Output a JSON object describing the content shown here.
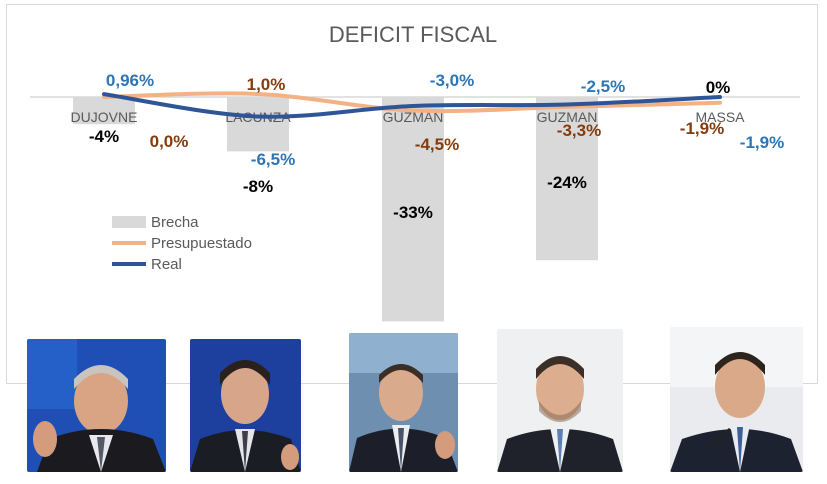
{
  "chart_data": {
    "type": "bar",
    "title": "DEFICIT FISCAL",
    "categories": [
      "DUJOVNE",
      "LACUNZA",
      "GUZMAN",
      "GUZMAN",
      "MASSA"
    ],
    "series": [
      {
        "name": "Brecha",
        "kind": "bar",
        "color": "#d9d9d9",
        "values": [
          -4,
          -8,
          -33,
          -24,
          0
        ],
        "labels": [
          "-4%",
          "-8%",
          "-33%",
          "-24%",
          ""
        ]
      },
      {
        "name": "Presupuestado",
        "kind": "line",
        "color": "#f4b183",
        "values": [
          0.0,
          1.0,
          -4.5,
          -3.3,
          -1.9
        ],
        "labels": [
          "0,0%",
          "1,0%",
          "-4,5%",
          "-3,3%",
          "-1,9%"
        ]
      },
      {
        "name": "Real",
        "kind": "line",
        "color": "#2f5597",
        "values": [
          0.96,
          -6.5,
          -3.0,
          -2.5,
          0
        ],
        "labels": [
          "0,96%",
          "-6,5%",
          "-3,0%",
          "-2,5%",
          "0%"
        ]
      }
    ],
    "extra_labels": [
      "-1,9%"
    ],
    "legend_position": "left",
    "grid": false
  },
  "colors": {
    "label_black": "#000000",
    "label_brown": "#843c0c",
    "label_blue": "#2e75b6"
  },
  "photos": [
    "portrait-dujovne",
    "portrait-lacunza",
    "portrait-guzman-1",
    "portrait-guzman-2",
    "portrait-massa"
  ]
}
